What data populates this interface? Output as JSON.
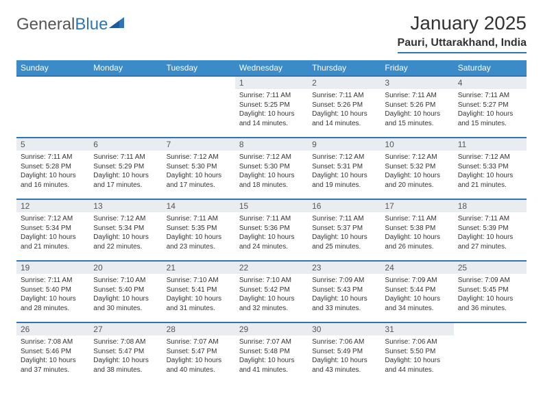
{
  "logo": {
    "text_a": "General",
    "text_b": "Blue"
  },
  "title": "January 2025",
  "location": "Pauri, Uttarakhand, India",
  "colors": {
    "header_bg": "#3b8bc9",
    "accent": "#2e75b6",
    "daynum_bg": "#e9edf2",
    "text": "#333333"
  },
  "fonts": {
    "title_size": 28,
    "location_size": 16,
    "header_size": 12,
    "body_size": 10
  },
  "weekdays": [
    "Sunday",
    "Monday",
    "Tuesday",
    "Wednesday",
    "Thursday",
    "Friday",
    "Saturday"
  ],
  "weeks": [
    [
      {
        "empty": true
      },
      {
        "empty": true
      },
      {
        "empty": true
      },
      {
        "num": "1",
        "sunrise": "Sunrise: 7:11 AM",
        "sunset": "Sunset: 5:25 PM",
        "day1": "Daylight: 10 hours",
        "day2": "and 14 minutes."
      },
      {
        "num": "2",
        "sunrise": "Sunrise: 7:11 AM",
        "sunset": "Sunset: 5:26 PM",
        "day1": "Daylight: 10 hours",
        "day2": "and 14 minutes."
      },
      {
        "num": "3",
        "sunrise": "Sunrise: 7:11 AM",
        "sunset": "Sunset: 5:26 PM",
        "day1": "Daylight: 10 hours",
        "day2": "and 15 minutes."
      },
      {
        "num": "4",
        "sunrise": "Sunrise: 7:11 AM",
        "sunset": "Sunset: 5:27 PM",
        "day1": "Daylight: 10 hours",
        "day2": "and 15 minutes."
      }
    ],
    [
      {
        "num": "5",
        "sunrise": "Sunrise: 7:11 AM",
        "sunset": "Sunset: 5:28 PM",
        "day1": "Daylight: 10 hours",
        "day2": "and 16 minutes."
      },
      {
        "num": "6",
        "sunrise": "Sunrise: 7:11 AM",
        "sunset": "Sunset: 5:29 PM",
        "day1": "Daylight: 10 hours",
        "day2": "and 17 minutes."
      },
      {
        "num": "7",
        "sunrise": "Sunrise: 7:12 AM",
        "sunset": "Sunset: 5:30 PM",
        "day1": "Daylight: 10 hours",
        "day2": "and 17 minutes."
      },
      {
        "num": "8",
        "sunrise": "Sunrise: 7:12 AM",
        "sunset": "Sunset: 5:30 PM",
        "day1": "Daylight: 10 hours",
        "day2": "and 18 minutes."
      },
      {
        "num": "9",
        "sunrise": "Sunrise: 7:12 AM",
        "sunset": "Sunset: 5:31 PM",
        "day1": "Daylight: 10 hours",
        "day2": "and 19 minutes."
      },
      {
        "num": "10",
        "sunrise": "Sunrise: 7:12 AM",
        "sunset": "Sunset: 5:32 PM",
        "day1": "Daylight: 10 hours",
        "day2": "and 20 minutes."
      },
      {
        "num": "11",
        "sunrise": "Sunrise: 7:12 AM",
        "sunset": "Sunset: 5:33 PM",
        "day1": "Daylight: 10 hours",
        "day2": "and 21 minutes."
      }
    ],
    [
      {
        "num": "12",
        "sunrise": "Sunrise: 7:12 AM",
        "sunset": "Sunset: 5:34 PM",
        "day1": "Daylight: 10 hours",
        "day2": "and 21 minutes."
      },
      {
        "num": "13",
        "sunrise": "Sunrise: 7:12 AM",
        "sunset": "Sunset: 5:34 PM",
        "day1": "Daylight: 10 hours",
        "day2": "and 22 minutes."
      },
      {
        "num": "14",
        "sunrise": "Sunrise: 7:11 AM",
        "sunset": "Sunset: 5:35 PM",
        "day1": "Daylight: 10 hours",
        "day2": "and 23 minutes."
      },
      {
        "num": "15",
        "sunrise": "Sunrise: 7:11 AM",
        "sunset": "Sunset: 5:36 PM",
        "day1": "Daylight: 10 hours",
        "day2": "and 24 minutes."
      },
      {
        "num": "16",
        "sunrise": "Sunrise: 7:11 AM",
        "sunset": "Sunset: 5:37 PM",
        "day1": "Daylight: 10 hours",
        "day2": "and 25 minutes."
      },
      {
        "num": "17",
        "sunrise": "Sunrise: 7:11 AM",
        "sunset": "Sunset: 5:38 PM",
        "day1": "Daylight: 10 hours",
        "day2": "and 26 minutes."
      },
      {
        "num": "18",
        "sunrise": "Sunrise: 7:11 AM",
        "sunset": "Sunset: 5:39 PM",
        "day1": "Daylight: 10 hours",
        "day2": "and 27 minutes."
      }
    ],
    [
      {
        "num": "19",
        "sunrise": "Sunrise: 7:11 AM",
        "sunset": "Sunset: 5:40 PM",
        "day1": "Daylight: 10 hours",
        "day2": "and 28 minutes."
      },
      {
        "num": "20",
        "sunrise": "Sunrise: 7:10 AM",
        "sunset": "Sunset: 5:40 PM",
        "day1": "Daylight: 10 hours",
        "day2": "and 30 minutes."
      },
      {
        "num": "21",
        "sunrise": "Sunrise: 7:10 AM",
        "sunset": "Sunset: 5:41 PM",
        "day1": "Daylight: 10 hours",
        "day2": "and 31 minutes."
      },
      {
        "num": "22",
        "sunrise": "Sunrise: 7:10 AM",
        "sunset": "Sunset: 5:42 PM",
        "day1": "Daylight: 10 hours",
        "day2": "and 32 minutes."
      },
      {
        "num": "23",
        "sunrise": "Sunrise: 7:09 AM",
        "sunset": "Sunset: 5:43 PM",
        "day1": "Daylight: 10 hours",
        "day2": "and 33 minutes."
      },
      {
        "num": "24",
        "sunrise": "Sunrise: 7:09 AM",
        "sunset": "Sunset: 5:44 PM",
        "day1": "Daylight: 10 hours",
        "day2": "and 34 minutes."
      },
      {
        "num": "25",
        "sunrise": "Sunrise: 7:09 AM",
        "sunset": "Sunset: 5:45 PM",
        "day1": "Daylight: 10 hours",
        "day2": "and 36 minutes."
      }
    ],
    [
      {
        "num": "26",
        "sunrise": "Sunrise: 7:08 AM",
        "sunset": "Sunset: 5:46 PM",
        "day1": "Daylight: 10 hours",
        "day2": "and 37 minutes."
      },
      {
        "num": "27",
        "sunrise": "Sunrise: 7:08 AM",
        "sunset": "Sunset: 5:47 PM",
        "day1": "Daylight: 10 hours",
        "day2": "and 38 minutes."
      },
      {
        "num": "28",
        "sunrise": "Sunrise: 7:07 AM",
        "sunset": "Sunset: 5:47 PM",
        "day1": "Daylight: 10 hours",
        "day2": "and 40 minutes."
      },
      {
        "num": "29",
        "sunrise": "Sunrise: 7:07 AM",
        "sunset": "Sunset: 5:48 PM",
        "day1": "Daylight: 10 hours",
        "day2": "and 41 minutes."
      },
      {
        "num": "30",
        "sunrise": "Sunrise: 7:06 AM",
        "sunset": "Sunset: 5:49 PM",
        "day1": "Daylight: 10 hours",
        "day2": "and 43 minutes."
      },
      {
        "num": "31",
        "sunrise": "Sunrise: 7:06 AM",
        "sunset": "Sunset: 5:50 PM",
        "day1": "Daylight: 10 hours",
        "day2": "and 44 minutes."
      },
      {
        "empty": true
      }
    ]
  ]
}
